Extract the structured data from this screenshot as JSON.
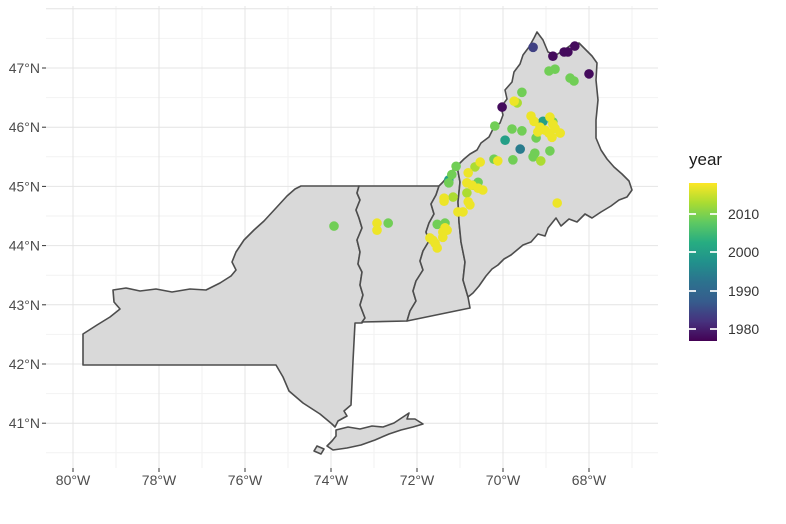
{
  "colors": {
    "background": "#ffffff",
    "land": "#d9d9d9",
    "state_border": "#4d4d4d",
    "grid_major": "#e4e4e4",
    "grid_minor": "#f2f2f2",
    "axis_text": "#4d4d4d",
    "tick": "#333333",
    "viridis": [
      "#440154",
      "#46327e",
      "#365c8d",
      "#2c728e",
      "#21918c",
      "#27ad81",
      "#5ec962",
      "#aadc32",
      "#fde725"
    ]
  },
  "chart_data": {
    "type": "scatter",
    "subtype": "map-scatter",
    "title": "",
    "map": {
      "regions": [
        "New York",
        "Vermont",
        "New Hampshire",
        "Maine"
      ],
      "land_fill": "#d9d9d9",
      "border_color": "#4d4d4d"
    },
    "x_axis": {
      "tick_labels": [
        "80°W",
        "78°W",
        "76°W",
        "74°W",
        "72°W",
        "70°W",
        "68°W"
      ],
      "tick_values": [
        -80,
        -78,
        -76,
        -74,
        -72,
        -70,
        -68
      ],
      "domain": [
        -80.6,
        -66.4
      ],
      "grid": "on"
    },
    "y_axis": {
      "tick_labels": [
        "47°N",
        "46°N",
        "45°N",
        "44°N",
        "43°N",
        "42°N",
        "41°N"
      ],
      "tick_values": [
        47,
        46,
        45,
        44,
        43,
        42,
        41
      ],
      "domain": [
        40.2,
        48.05
      ],
      "grid": "on"
    },
    "legend": {
      "title": "year",
      "position": "right",
      "colormap": "viridis",
      "tick_labels": [
        "2010",
        "2000",
        "1990",
        "1980"
      ],
      "tick_years": [
        2010,
        2000,
        1990,
        1980
      ],
      "year_range": [
        1977,
        2018
      ]
    },
    "points": [
      {
        "lon": -69.3,
        "lat": 47.35,
        "year": 1984
      },
      {
        "lon": -68.84,
        "lat": 47.2,
        "year": 1978
      },
      {
        "lon": -68.58,
        "lat": 47.27,
        "year": 1978
      },
      {
        "lon": -68.49,
        "lat": 47.27,
        "year": 1978
      },
      {
        "lon": -68.33,
        "lat": 47.37,
        "year": 1978
      },
      {
        "lon": -68.0,
        "lat": 46.9,
        "year": 1978
      },
      {
        "lon": -68.93,
        "lat": 46.95,
        "year": 2009
      },
      {
        "lon": -68.79,
        "lat": 46.98,
        "year": 2009
      },
      {
        "lon": -68.44,
        "lat": 46.83,
        "year": 2009
      },
      {
        "lon": -68.35,
        "lat": 46.78,
        "year": 2009
      },
      {
        "lon": -69.56,
        "lat": 46.59,
        "year": 2009
      },
      {
        "lon": -69.74,
        "lat": 46.44,
        "year": 2017
      },
      {
        "lon": -70.02,
        "lat": 46.34,
        "year": 1978
      },
      {
        "lon": -69.67,
        "lat": 46.41,
        "year": 2013
      },
      {
        "lon": -70.19,
        "lat": 46.02,
        "year": 2009
      },
      {
        "lon": -69.79,
        "lat": 45.97,
        "year": 2009
      },
      {
        "lon": -69.56,
        "lat": 45.94,
        "year": 2009
      },
      {
        "lon": -69.95,
        "lat": 45.78,
        "year": 2000
      },
      {
        "lon": -69.23,
        "lat": 45.82,
        "year": 2009
      },
      {
        "lon": -69.6,
        "lat": 45.63,
        "year": 1994
      },
      {
        "lon": -69.26,
        "lat": 45.56,
        "year": 2009
      },
      {
        "lon": -68.91,
        "lat": 45.6,
        "year": 2009
      },
      {
        "lon": -70.12,
        "lat": 45.43,
        "year": 2017
      },
      {
        "lon": -69.77,
        "lat": 45.45,
        "year": 2009
      },
      {
        "lon": -69.3,
        "lat": 45.5,
        "year": 2009
      },
      {
        "lon": -69.12,
        "lat": 45.43,
        "year": 2013
      },
      {
        "lon": -69.07,
        "lat": 46.1,
        "year": 2000
      },
      {
        "lon": -69.28,
        "lat": 46.1,
        "year": 2017
      },
      {
        "lon": -68.84,
        "lat": 46.09,
        "year": 2009
      },
      {
        "lon": -68.84,
        "lat": 46.05,
        "year": 2017
      },
      {
        "lon": -69.02,
        "lat": 45.95,
        "year": 2017
      },
      {
        "lon": -68.93,
        "lat": 45.9,
        "year": 2017
      },
      {
        "lon": -68.79,
        "lat": 45.98,
        "year": 2017
      },
      {
        "lon": -69.14,
        "lat": 46.0,
        "year": 2017
      },
      {
        "lon": -69.19,
        "lat": 45.92,
        "year": 2017
      },
      {
        "lon": -68.67,
        "lat": 45.9,
        "year": 2017
      },
      {
        "lon": -68.86,
        "lat": 45.83,
        "year": 2017
      },
      {
        "lon": -69.35,
        "lat": 46.19,
        "year": 2017
      },
      {
        "lon": -68.91,
        "lat": 46.17,
        "year": 2017
      },
      {
        "lon": -68.74,
        "lat": 44.72,
        "year": 2017
      },
      {
        "lon": -71.26,
        "lat": 45.11,
        "year": 2000
      },
      {
        "lon": -71.19,
        "lat": 45.2,
        "year": 2009
      },
      {
        "lon": -71.26,
        "lat": 45.06,
        "year": 2009
      },
      {
        "lon": -70.81,
        "lat": 45.23,
        "year": 2017
      },
      {
        "lon": -70.84,
        "lat": 45.06,
        "year": 2017
      },
      {
        "lon": -70.7,
        "lat": 45.02,
        "year": 2009
      },
      {
        "lon": -70.58,
        "lat": 45.07,
        "year": 2009
      },
      {
        "lon": -70.72,
        "lat": 45.02,
        "year": 2017
      },
      {
        "lon": -70.58,
        "lat": 44.97,
        "year": 2017
      },
      {
        "lon": -70.47,
        "lat": 44.94,
        "year": 2017
      },
      {
        "lon": -70.53,
        "lat": 45.41,
        "year": 2017
      },
      {
        "lon": -71.09,
        "lat": 45.34,
        "year": 2009
      },
      {
        "lon": -71.37,
        "lat": 44.8,
        "year": 2017
      },
      {
        "lon": -71.37,
        "lat": 44.75,
        "year": 2017
      },
      {
        "lon": -71.16,
        "lat": 44.82,
        "year": 2013
      },
      {
        "lon": -71.05,
        "lat": 44.57,
        "year": 2017
      },
      {
        "lon": -70.81,
        "lat": 44.74,
        "year": 2017
      },
      {
        "lon": -70.77,
        "lat": 44.69,
        "year": 2017
      },
      {
        "lon": -70.93,
        "lat": 44.57,
        "year": 2017
      },
      {
        "lon": -70.65,
        "lat": 45.33,
        "year": 2013
      },
      {
        "lon": -70.84,
        "lat": 44.89,
        "year": 2013
      },
      {
        "lon": -71.53,
        "lat": 44.36,
        "year": 2009
      },
      {
        "lon": -71.35,
        "lat": 44.38,
        "year": 2009
      },
      {
        "lon": -71.35,
        "lat": 44.3,
        "year": 2017
      },
      {
        "lon": -71.4,
        "lat": 44.23,
        "year": 2017
      },
      {
        "lon": -71.3,
        "lat": 44.26,
        "year": 2017
      },
      {
        "lon": -71.7,
        "lat": 44.13,
        "year": 2017
      },
      {
        "lon": -71.58,
        "lat": 44.04,
        "year": 2017
      },
      {
        "lon": -71.53,
        "lat": 43.96,
        "year": 2017
      },
      {
        "lon": -71.4,
        "lat": 44.14,
        "year": 2017
      },
      {
        "lon": -71.63,
        "lat": 44.09,
        "year": 2017
      },
      {
        "lon": -72.93,
        "lat": 44.38,
        "year": 2017
      },
      {
        "lon": -72.93,
        "lat": 44.26,
        "year": 2017
      },
      {
        "lon": -72.67,
        "lat": 44.38,
        "year": 2009
      },
      {
        "lon": -73.93,
        "lat": 44.33,
        "year": 2009
      },
      {
        "lon": -70.21,
        "lat": 45.46,
        "year": 2009
      }
    ]
  }
}
